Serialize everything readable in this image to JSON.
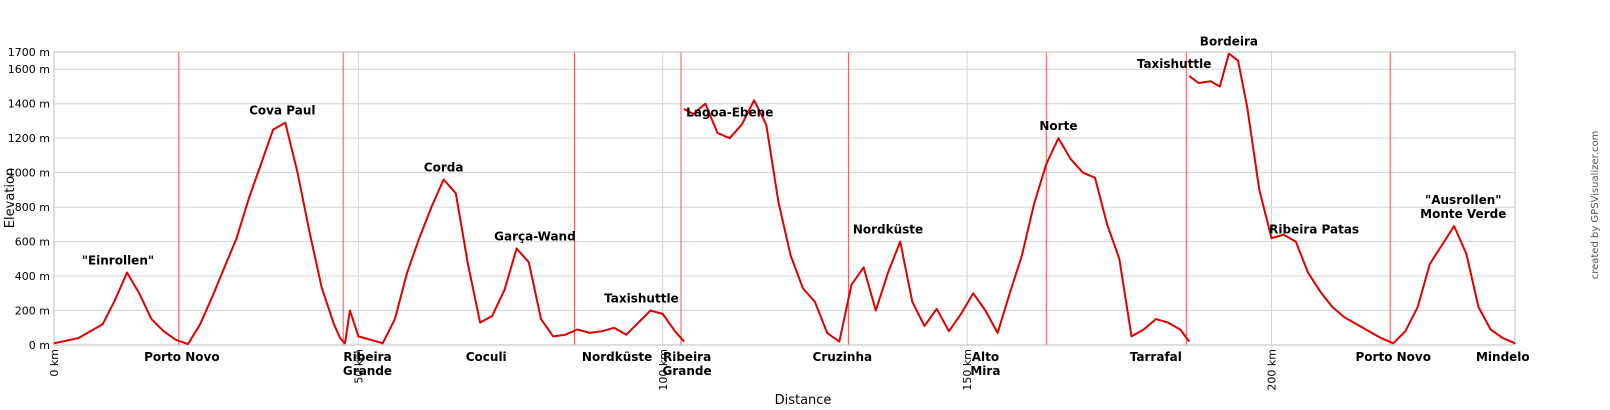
{
  "chart_data": {
    "type": "line",
    "title": "",
    "xlabel": "Distance",
    "ylabel": "Elevation",
    "xlim": [
      0,
      240
    ],
    "ylim": [
      0,
      1700
    ],
    "grid": true,
    "y_ticks": [
      0,
      200,
      400,
      600,
      800,
      1000,
      1200,
      1400,
      1600,
      1700
    ],
    "y_tick_labels": [
      "0 m",
      "200 m",
      "400 m",
      "600 m",
      "800 m",
      "1000 m",
      "1200 m",
      "1400 m",
      "1600 m",
      "1700 m"
    ],
    "x_ticks": [
      0,
      50,
      100,
      150,
      200
    ],
    "x_tick_labels": [
      "0 km",
      "50 km",
      "100 km",
      "150 km",
      "200 km"
    ],
    "stage_breaks_km": [
      20.5,
      47.5,
      85.5,
      103.0,
      130.5,
      163.0,
      186.0,
      219.5
    ],
    "series": [
      {
        "color": "#e00000",
        "segments": [
          {
            "x": [
              0,
              4,
              8,
              10,
              12,
              14,
              16,
              18,
              20,
              22,
              24,
              26,
              28,
              30,
              32,
              34,
              36,
              38,
              40,
              42,
              44,
              46,
              47,
              47.8,
              48.6,
              50,
              52,
              54,
              56,
              58,
              60,
              62,
              64,
              66,
              68,
              70,
              72,
              74,
              76,
              78,
              80,
              82,
              84,
              86,
              88,
              90,
              92,
              94,
              96,
              98,
              100,
              102,
              103.5
            ],
            "y": [
              10,
              40,
              120,
              260,
              420,
              300,
              150,
              80,
              30,
              5,
              120,
              280,
              450,
              620,
              850,
              1050,
              1250,
              1290,
              1000,
              650,
              330,
              120,
              40,
              10,
              200,
              50,
              30,
              10,
              150,
              420,
              620,
              800,
              960,
              880,
              470,
              130,
              170,
              320,
              560,
              480,
              150,
              50,
              60,
              90,
              70,
              80,
              100,
              60,
              130,
              200,
              180,
              80,
              20
            ]
          },
          {
            "x": [
              103.5,
              105,
              107,
              109,
              111,
              113,
              115,
              117,
              119,
              121,
              123,
              125,
              127,
              129,
              131,
              133,
              135,
              137,
              139,
              141,
              143,
              145,
              147,
              149,
              151,
              153,
              155,
              157,
              159,
              161,
              163,
              165,
              167,
              169,
              171,
              173,
              175,
              177,
              179,
              181,
              183,
              185,
              186.5
            ],
            "y": [
              1370,
              1340,
              1400,
              1230,
              1200,
              1280,
              1420,
              1280,
              830,
              520,
              330,
              250,
              70,
              20,
              350,
              450,
              200,
              420,
              600,
              250,
              110,
              210,
              80,
              180,
              300,
              200,
              70,
              300,
              520,
              820,
              1050,
              1200,
              1080,
              1000,
              970,
              700,
              500,
              50,
              90,
              150,
              130,
              90,
              20
            ]
          },
          {
            "x": [
              186.5,
              188,
              190,
              191.5,
              193,
              194.5,
              196,
              198,
              200,
              202,
              204,
              206,
              208,
              210,
              212,
              214,
              216,
              218,
              220,
              222,
              224,
              226,
              228,
              230,
              232,
              234,
              236,
              238,
              240
            ],
            "y": [
              1560,
              1520,
              1530,
              1500,
              1690,
              1650,
              1380,
              900,
              620,
              640,
              600,
              420,
              310,
              220,
              160,
              120,
              80,
              40,
              10,
              80,
              220,
              470,
              580,
              690,
              530,
              220,
              90,
              40,
              10
            ]
          }
        ]
      }
    ],
    "annotations": [
      {
        "lines": [
          "\"Einrollen\""
        ],
        "x": 10.5,
        "row": "top"
      },
      {
        "lines": [
          "Porto Novo"
        ],
        "x": 21,
        "row": "bottom"
      },
      {
        "lines": [
          "Cova Paul"
        ],
        "x": 37.5,
        "row": "top"
      },
      {
        "lines": [
          "Ribeira",
          "Grande"
        ],
        "x": 51.5,
        "row": "bottom"
      },
      {
        "lines": [
          "Corda"
        ],
        "x": 64,
        "row": "top"
      },
      {
        "lines": [
          "Coculi"
        ],
        "x": 71,
        "row": "bottom"
      },
      {
        "lines": [
          "Garça-Wand"
        ],
        "x": 79,
        "row": "top"
      },
      {
        "lines": [
          "Nordküste"
        ],
        "x": 92.5,
        "row": "bottom"
      },
      {
        "lines": [
          "Taxishuttle"
        ],
        "x": 96.5,
        "row": "top"
      },
      {
        "lines": [
          "Ribeira",
          "Grande"
        ],
        "x": 104,
        "row": "bottom"
      },
      {
        "lines": [
          "Lagoa-Ebene"
        ],
        "x": 111,
        "row": "top"
      },
      {
        "lines": [
          "Cruzinha"
        ],
        "x": 129.5,
        "row": "bottom"
      },
      {
        "lines": [
          "Nordküste"
        ],
        "x": 137,
        "row": "top"
      },
      {
        "lines": [
          "Alto",
          "Mira"
        ],
        "x": 153,
        "row": "bottom"
      },
      {
        "lines": [
          "Norte"
        ],
        "x": 165,
        "row": "top"
      },
      {
        "lines": [
          "Taxishuttle"
        ],
        "x": 184,
        "row": "top"
      },
      {
        "lines": [
          "Tarrafal"
        ],
        "x": 181,
        "row": "bottom"
      },
      {
        "lines": [
          "Bordeira"
        ],
        "x": 193,
        "row": "top"
      },
      {
        "lines": [
          "Ribeira Patas"
        ],
        "x": 207,
        "row": "top"
      },
      {
        "lines": [
          "Porto Novo"
        ],
        "x": 220,
        "row": "bottom"
      },
      {
        "lines": [
          "\"Ausrollen\"",
          "Monte Verde"
        ],
        "x": 231.5,
        "row": "top"
      },
      {
        "lines": [
          "Mindelo"
        ],
        "x": 238,
        "row": "bottom"
      }
    ]
  },
  "credit": "created by GPSVisualizer.com"
}
